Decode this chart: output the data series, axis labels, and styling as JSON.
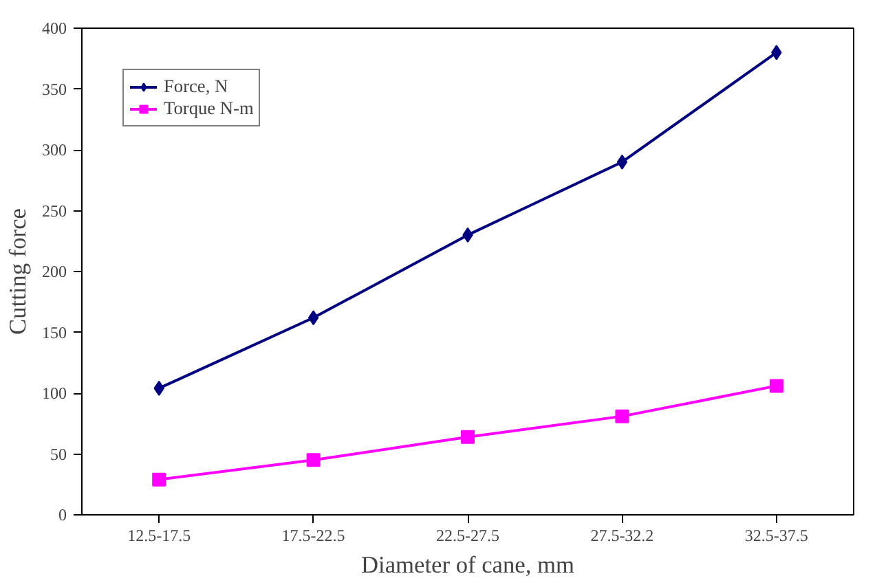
{
  "chart_data": {
    "type": "line",
    "xlabel": "Diameter of cane, mm",
    "ylabel": "Cutting force",
    "categories": [
      "12.5-17.5",
      "17.5-22.5",
      "22.5-27.5",
      "27.5-32.2",
      "32.5-37.5"
    ],
    "series": [
      {
        "name": "Force, N",
        "color": "#000080",
        "marker": "diamond",
        "values": [
          104,
          162,
          230,
          290,
          380
        ]
      },
      {
        "name": "Torque N-m",
        "color": "#ff00ff",
        "marker": "square",
        "values": [
          29,
          45,
          64,
          81,
          106
        ]
      }
    ],
    "ylim": [
      0,
      400
    ],
    "yticks": [
      0,
      50,
      100,
      150,
      200,
      250,
      300,
      350,
      400
    ],
    "grid": false,
    "legend": "top left",
    "line_style": "solid"
  }
}
